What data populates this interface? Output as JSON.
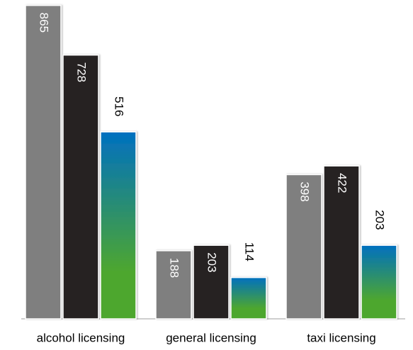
{
  "chart_data": {
    "type": "bar",
    "categories": [
      "alcohol licensing",
      "general licensing",
      "taxi licensing"
    ],
    "series": [
      {
        "color": "#7f7f7f",
        "values": [
          865,
          188,
          398
        ]
      },
      {
        "color": "#262322",
        "values": [
          728,
          203,
          422
        ]
      },
      {
        "color": [
          "#0070c0",
          "#4ea72e"
        ],
        "values": [
          516,
          114,
          203
        ]
      }
    ],
    "ylim": [
      0,
      880
    ]
  }
}
